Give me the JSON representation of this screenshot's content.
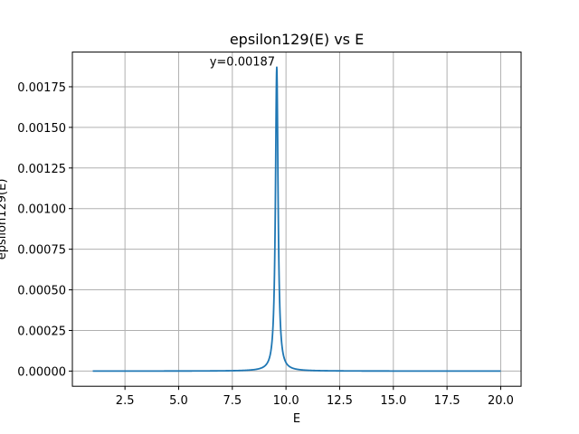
{
  "chart_data": {
    "type": "line",
    "title": "epsilon129(E) vs E",
    "xlabel": "E",
    "ylabel": "epsilon129(E)",
    "xlim": [
      0.05,
      20.95
    ],
    "ylim": [
      -9.35e-05,
      0.0019635
    ],
    "xticks": [
      2.5,
      5.0,
      7.5,
      10.0,
      12.5,
      15.0,
      17.5,
      20.0
    ],
    "xtick_labels": [
      "2.5",
      "5.0",
      "7.5",
      "10.0",
      "12.5",
      "15.0",
      "17.5",
      "20.0"
    ],
    "yticks": [
      0,
      0.00025,
      0.0005,
      0.00075,
      0.001,
      0.00125,
      0.0015,
      0.00175
    ],
    "ytick_labels": [
      "0.00000",
      "0.00025",
      "0.00050",
      "0.00075",
      "0.00100",
      "0.00125",
      "0.00150",
      "0.00175"
    ],
    "grid": true,
    "series": [
      {
        "color": "#1f77b4",
        "peak": {
          "x": 9.57,
          "y": 0.00187,
          "half_width": 0.073
        },
        "x_range": [
          1.0,
          20.0
        ]
      }
    ],
    "annotation": {
      "text": "y=0.00187",
      "x": 9.57,
      "y": 0.00187
    }
  }
}
